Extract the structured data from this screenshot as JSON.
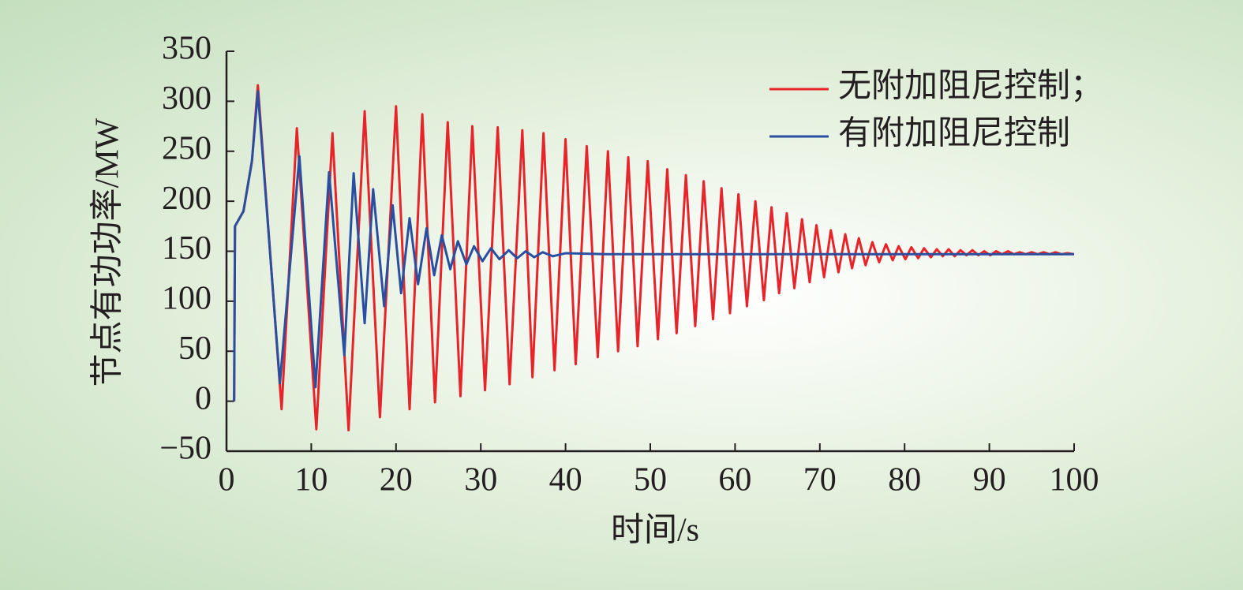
{
  "chart_data": {
    "type": "line",
    "xlabel": "时间/s",
    "ylabel": "节点有功功率/MW",
    "xlim": [
      0,
      100
    ],
    "xticks": [
      0,
      10,
      20,
      30,
      40,
      50,
      60,
      70,
      80,
      90,
      100
    ],
    "ylim": [
      -50,
      350
    ],
    "yticks": [
      {
        "value": -50,
        "label": "−50"
      },
      0,
      50,
      100,
      150,
      200,
      250,
      300,
      350
    ],
    "legend": "upper-right",
    "series": [
      {
        "name": "无附加阻尼控制；",
        "color": "#e8242b",
        "x": [
          0.9,
          1.0,
          2.0,
          3.0,
          3.7,
          6.5,
          8.3,
          10.6,
          12.5,
          14.4,
          16.3,
          18.1,
          20.0,
          21.6,
          23.1,
          24.6,
          26.1,
          27.6,
          29.0,
          30.5,
          32.0,
          33.4,
          34.9,
          36.1,
          37.4,
          38.7,
          40.0,
          41.2,
          42.5,
          43.8,
          45.0,
          46.2,
          47.4,
          48.5,
          49.7,
          50.9,
          52.0,
          53.1,
          54.2,
          55.3,
          56.3,
          57.4,
          58.4,
          59.4,
          60.4,
          61.4,
          62.4,
          63.4,
          64.3,
          65.2,
          66.1,
          67.0,
          67.9,
          68.8,
          69.6,
          70.5,
          71.3,
          72.2,
          73.0,
          73.8,
          74.6,
          75.4,
          76.2,
          77.0,
          77.8,
          78.6,
          79.3,
          80.1,
          80.8,
          81.6,
          82.3,
          83.1,
          83.8,
          84.5,
          85.2,
          85.9,
          86.6,
          87.3,
          88.0,
          88.7,
          89.4,
          90.1,
          90.8,
          91.5,
          92.2,
          92.9,
          93.6,
          94.3,
          95.0,
          95.7,
          96.4,
          97.1,
          97.8,
          98.5,
          99.2,
          100
        ],
        "values": [
          0,
          175,
          190,
          240,
          316,
          -8,
          273,
          -28,
          268,
          -29,
          290,
          -16,
          295,
          -8,
          287,
          -1,
          279,
          5,
          275,
          11,
          274,
          17,
          271,
          24,
          268,
          31,
          262,
          37,
          255,
          44,
          250,
          50,
          244,
          55,
          240,
          62,
          232,
          68,
          226,
          75,
          220,
          82,
          213,
          88,
          207,
          95,
          200,
          101,
          194,
          108,
          188,
          113,
          182,
          119,
          176,
          124,
          171,
          129,
          167,
          133,
          163,
          136,
          159,
          139,
          157,
          141,
          155,
          142,
          154,
          143,
          153,
          144,
          152,
          145,
          152,
          145,
          151,
          146,
          151,
          146,
          150,
          146,
          150,
          147,
          150,
          147,
          149,
          147,
          149,
          147,
          149,
          147,
          149,
          147,
          148,
          147
        ]
      },
      {
        "name": "有附加阻尼控制",
        "color": "#2a4ea0",
        "x": [
          0.9,
          1.0,
          2.0,
          3.0,
          3.7,
          6.3,
          8.6,
          10.5,
          12.1,
          13.9,
          15.0,
          16.3,
          17.3,
          18.6,
          19.6,
          20.6,
          21.6,
          22.6,
          23.6,
          24.5,
          25.4,
          26.4,
          27.3,
          28.3,
          29.2,
          30.2,
          31.2,
          32.2,
          33.3,
          34.3,
          35.3,
          36.3,
          37.3,
          38.5,
          40,
          45,
          100
        ],
        "values": [
          0,
          175,
          190,
          240,
          310,
          18,
          245,
          14,
          229,
          46,
          228,
          78,
          212,
          95,
          196,
          108,
          183,
          117,
          173,
          126,
          166,
          132,
          160,
          137,
          155,
          140,
          153,
          142,
          151,
          143,
          150,
          144,
          149,
          145,
          148,
          147,
          147
        ]
      }
    ]
  }
}
